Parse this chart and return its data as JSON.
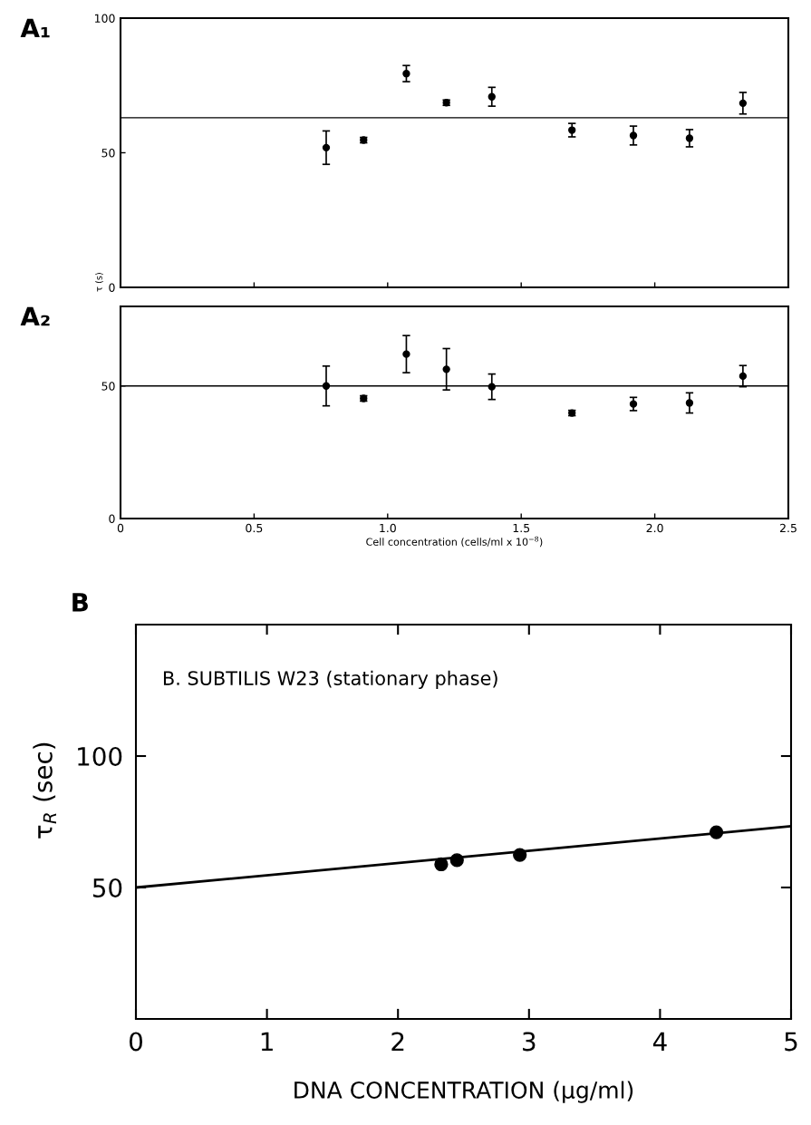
{
  "chart_data": [
    {
      "type": "scatter",
      "title": "A₁",
      "ylabel": "τ (s)",
      "xlim": [
        0,
        2.5
      ],
      "ylim": [
        0,
        100
      ],
      "yticks": [
        0,
        50,
        100
      ],
      "xticks": [
        0,
        0.5,
        1.0,
        1.5,
        2.0,
        2.5
      ],
      "tick_labels": "y",
      "marker": "circle",
      "ref_lines": [
        {
          "axis": "y",
          "value": 63,
          "color": "#000000"
        }
      ],
      "series": [
        {
          "color": "#000000",
          "x": [
            0.77,
            0.91,
            1.07,
            1.22,
            1.39,
            1.69,
            1.92,
            2.13,
            2.33
          ],
          "values": [
            51.9,
            54.7,
            79.4,
            68.6,
            70.8,
            58.4,
            56.4,
            55.4,
            68.4
          ],
          "errors": [
            6.2,
            1,
            3,
            1,
            3.5,
            2.5,
            3.5,
            3.2,
            4
          ]
        }
      ]
    },
    {
      "type": "scatter",
      "title": "A₂",
      "xlabel": "Cell concentration (cells/ml x 10$^{−8}$)",
      "xlim": [
        0,
        2.5
      ],
      "ylim": [
        0,
        80
      ],
      "yticks": [
        0,
        50
      ],
      "xticks": [
        0,
        {
          "value": 0.5,
          "label": "0.5"
        },
        {
          "value": 1.0,
          "label": "1.0"
        },
        {
          "value": 1.5,
          "label": "1.5"
        },
        {
          "value": 2.0,
          "label": "2.0"
        },
        {
          "value": 2.5,
          "label": "2.5"
        }
      ],
      "marker": "circle",
      "ref_lines": [
        {
          "axis": "y",
          "value": 50,
          "color": "#000000"
        }
      ],
      "series": [
        {
          "color": "#000000",
          "x": [
            0.77,
            0.91,
            1.07,
            1.22,
            1.39,
            1.69,
            1.92,
            2.13,
            2.33
          ],
          "values": [
            50,
            45.3,
            62,
            56.3,
            49.7,
            39.8,
            43.2,
            43.6,
            53.7
          ],
          "errors": [
            7.5,
            1,
            7,
            7.8,
            4.8,
            1,
            2.5,
            3.8,
            4
          ]
        }
      ]
    },
    {
      "type": "scatter",
      "title": "B",
      "xlabel": "DNA CONCENTRATION (μg/ml)",
      "ylabel": "τ$_{R}$ (sec)",
      "annotations": [
        "B. SUBTILIS W23 (stationary phase)"
      ],
      "xlim": [
        0,
        5
      ],
      "ylim": [
        0,
        150
      ],
      "xticks": [
        0,
        1,
        2,
        3,
        4,
        5
      ],
      "yticks": [
        50,
        100
      ],
      "marker": "circle",
      "series": [
        {
          "color": "#000000",
          "x": [
            2.33,
            2.45,
            2.93,
            4.43
          ],
          "values": [
            58.8,
            60.4,
            62.4,
            71
          ]
        },
        {
          "type": "line",
          "marker": "none",
          "color": "#000000",
          "x": [
            0,
            5
          ],
          "values": [
            50,
            73.3
          ]
        }
      ]
    }
  ]
}
